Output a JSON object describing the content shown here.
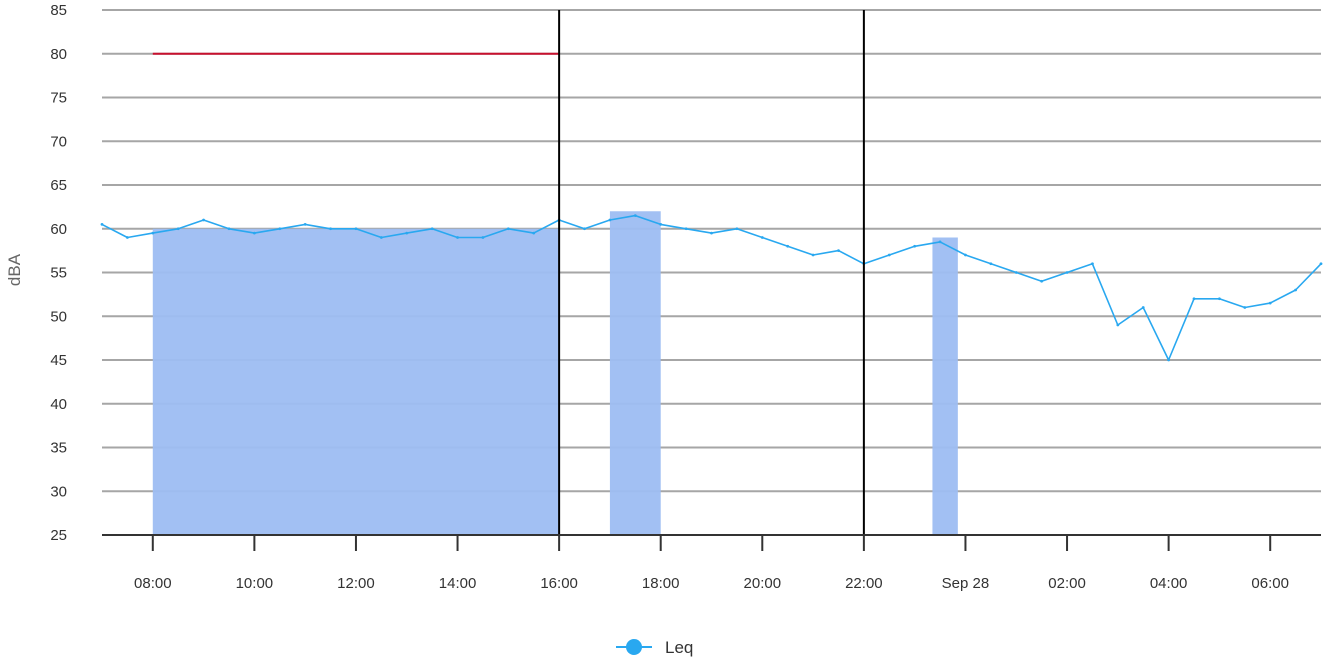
{
  "chart_data": {
    "type": "line",
    "ylabel": "dBA",
    "ylim": [
      25,
      85
    ],
    "yticks": [
      "25",
      "30",
      "35",
      "40",
      "45",
      "50",
      "55",
      "60",
      "65",
      "70",
      "75",
      "80",
      "85"
    ],
    "xlim_hours": [
      7.0,
      31.0
    ],
    "xticks": [
      {
        "hour": 8,
        "label": "08:00"
      },
      {
        "hour": 10,
        "label": "10:00"
      },
      {
        "hour": 12,
        "label": "12:00"
      },
      {
        "hour": 14,
        "label": "14:00"
      },
      {
        "hour": 16,
        "label": "16:00"
      },
      {
        "hour": 18,
        "label": "18:00"
      },
      {
        "hour": 20,
        "label": "20:00"
      },
      {
        "hour": 22,
        "label": "22:00"
      },
      {
        "hour": 24,
        "label": "Sep 28"
      },
      {
        "hour": 26,
        "label": "02:00"
      },
      {
        "hour": 28,
        "label": "04:00"
      },
      {
        "hour": 30,
        "label": "06:00"
      }
    ],
    "grid": true,
    "legend_position": "bottom-center",
    "series": [
      {
        "name": "Leq",
        "color": "#29a8f0",
        "x_hours": [
          7.0,
          7.5,
          8.0,
          8.5,
          9.0,
          9.5,
          10.0,
          10.5,
          11.0,
          11.5,
          12.0,
          12.5,
          13.0,
          13.5,
          14.0,
          14.5,
          15.0,
          15.5,
          16.0,
          16.5,
          17.0,
          17.5,
          18.0,
          18.5,
          19.0,
          19.5,
          20.0,
          20.5,
          21.0,
          21.5,
          22.0,
          22.5,
          23.0,
          23.5,
          24.0,
          24.5,
          25.0,
          25.5,
          26.0,
          26.5,
          27.0,
          27.5,
          28.0,
          28.5,
          29.0,
          29.5,
          30.0,
          30.5,
          31.0
        ],
        "values": [
          60.5,
          59,
          59.5,
          60,
          61,
          60,
          59.5,
          60,
          60.5,
          60,
          60,
          59,
          59.5,
          60,
          59,
          59,
          60,
          59.5,
          61,
          60,
          61,
          61.5,
          60.5,
          60,
          59.5,
          60,
          59,
          58,
          57,
          57.5,
          56,
          57,
          58,
          58.5,
          57,
          56,
          55,
          54,
          55,
          56,
          49,
          51,
          45,
          52,
          52,
          51,
          51.5,
          53,
          56
        ]
      }
    ],
    "reference_lines": [
      {
        "kind": "limit",
        "color": "#c8102e",
        "value": 80,
        "x_hours": [
          8.0,
          16.0
        ]
      }
    ],
    "vertical_markers_hours": [
      16.0,
      22.0
    ],
    "shaded_periods": [
      {
        "x_hours": [
          8.0,
          16.0
        ],
        "top": 60,
        "color": "#9dbdf2"
      },
      {
        "x_hours": [
          17.0,
          18.0
        ],
        "top": 62,
        "color": "#9dbdf2"
      },
      {
        "x_hours": [
          23.35,
          23.85
        ],
        "top": 59,
        "color": "#9dbdf2"
      }
    ]
  }
}
